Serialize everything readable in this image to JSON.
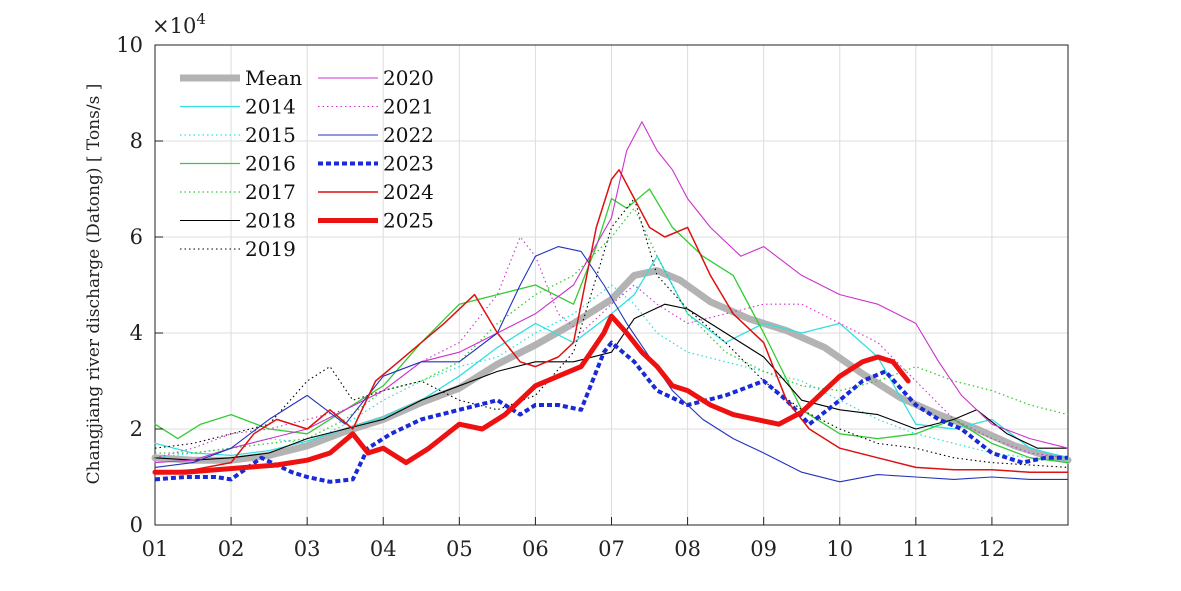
{
  "chart_data": {
    "type": "line",
    "ylabel": "Changjiang river discharge (Datong) [ Tons/s ]",
    "y_multiplier": "×10",
    "y_multiplier_exp": "4",
    "ylim": [
      0,
      100000
    ],
    "yticks": [
      0,
      20000,
      40000,
      60000,
      80000,
      100000
    ],
    "ytick_labels": [
      "0",
      "2",
      "4",
      "6",
      "8",
      "10"
    ],
    "xlim": [
      1,
      13
    ],
    "xticks": [
      1,
      2,
      3,
      4,
      5,
      6,
      7,
      8,
      9,
      10,
      11,
      12
    ],
    "xtick_labels": [
      "01",
      "02",
      "03",
      "04",
      "05",
      "06",
      "07",
      "08",
      "09",
      "10",
      "11",
      "12"
    ],
    "grid": true,
    "legend_position": "top-left",
    "series": [
      {
        "name": "Mean",
        "color": "#b3b3b3",
        "style": "solid",
        "width": 7,
        "x": [
          1,
          1.5,
          2,
          2.5,
          3,
          3.5,
          4,
          4.5,
          5,
          5.5,
          6,
          6.5,
          7,
          7.3,
          7.6,
          7.9,
          8.3,
          8.8,
          9.3,
          9.8,
          10.3,
          10.8,
          11.3,
          11.8,
          12.3,
          12.7,
          13
        ],
        "y": [
          14000,
          13500,
          13500,
          14500,
          16500,
          19500,
          22000,
          25500,
          28500,
          33500,
          37500,
          42000,
          47000,
          52000,
          53000,
          51000,
          46500,
          43000,
          40500,
          37000,
          31500,
          26500,
          23000,
          20000,
          16500,
          14500,
          13500
        ]
      },
      {
        "name": "2014",
        "color": "#33e0e0",
        "style": "solid",
        "width": 1.3,
        "x": [
          1,
          1.5,
          2,
          2.5,
          3,
          3.5,
          4,
          4.5,
          5,
          5.5,
          6,
          6.5,
          7,
          7.3,
          7.6,
          8,
          8.5,
          9,
          9.5,
          10,
          10.5,
          11,
          11.5,
          12,
          12.5,
          13
        ],
        "y": [
          17000,
          15000,
          14500,
          15500,
          17500,
          20000,
          22500,
          26000,
          31000,
          37000,
          42000,
          38000,
          44000,
          48000,
          56000,
          44000,
          38000,
          42000,
          40000,
          42000,
          35000,
          21000,
          20000,
          22000,
          16000,
          14000
        ]
      },
      {
        "name": "2015",
        "color": "#33e0e0",
        "style": "dotted",
        "width": 1.3,
        "x": [
          1,
          1.5,
          2,
          2.5,
          3,
          3.5,
          4,
          4.5,
          5,
          5.5,
          6,
          6.5,
          7,
          7.3,
          7.6,
          8,
          8.5,
          9,
          9.5,
          10,
          10.5,
          11,
          11.5,
          12,
          12.5,
          13
        ],
        "y": [
          14000,
          15000,
          16000,
          18000,
          17000,
          21000,
          26000,
          30000,
          33000,
          35000,
          40000,
          44000,
          50000,
          46000,
          40000,
          36000,
          34000,
          32000,
          30000,
          26000,
          22000,
          19000,
          17000,
          15000,
          14000,
          13500
        ]
      },
      {
        "name": "2016",
        "color": "#33cc33",
        "style": "solid",
        "width": 1.3,
        "x": [
          1,
          1.3,
          1.6,
          2,
          2.5,
          3,
          3.5,
          4,
          4.5,
          5,
          5.5,
          6,
          6.5,
          6.8,
          7,
          7.2,
          7.5,
          7.8,
          8.2,
          8.6,
          9,
          9.5,
          10,
          10.5,
          11,
          11.5,
          12,
          12.5,
          13
        ],
        "y": [
          21000,
          18000,
          21000,
          23000,
          20000,
          19000,
          24000,
          29000,
          38000,
          46000,
          48000,
          50000,
          46000,
          58000,
          68000,
          66000,
          70000,
          62000,
          56000,
          52000,
          40000,
          24000,
          19000,
          18000,
          19000,
          22000,
          17000,
          14000,
          13000
        ]
      },
      {
        "name": "2017",
        "color": "#33cc33",
        "style": "dotted",
        "width": 1.3,
        "x": [
          1,
          1.5,
          2,
          2.5,
          3,
          3.5,
          4,
          4.5,
          5,
          5.5,
          6,
          6.5,
          7,
          7.3,
          7.6,
          8,
          8.5,
          9,
          9.5,
          10,
          10.5,
          11,
          11.5,
          12,
          12.5,
          13
        ],
        "y": [
          15000,
          15000,
          16000,
          17000,
          18000,
          22000,
          28000,
          30000,
          34000,
          42000,
          48000,
          52000,
          60000,
          66000,
          56000,
          44000,
          36000,
          32000,
          29000,
          28000,
          30000,
          33000,
          30000,
          28000,
          25000,
          23000
        ]
      },
      {
        "name": "2018",
        "color": "#000000",
        "style": "solid",
        "width": 1.1,
        "x": [
          1,
          1.5,
          2,
          2.5,
          3,
          3.5,
          4,
          4.5,
          5,
          5.5,
          6,
          6.5,
          7,
          7.3,
          7.7,
          8,
          8.5,
          9,
          9.5,
          10,
          10.5,
          11,
          11.5,
          11.8,
          12.2,
          12.6,
          13
        ],
        "y": [
          14000,
          13500,
          14000,
          15000,
          18000,
          20000,
          22000,
          26000,
          29000,
          32000,
          34000,
          34000,
          36000,
          43000,
          46000,
          45000,
          40000,
          35000,
          26000,
          24000,
          23000,
          20000,
          22000,
          24000,
          19000,
          16000,
          16000
        ]
      },
      {
        "name": "2019",
        "color": "#000000",
        "style": "dotted",
        "width": 1.1,
        "x": [
          1,
          1.5,
          2,
          2.5,
          3,
          3.3,
          3.6,
          4,
          4.5,
          5,
          5.5,
          6,
          6.5,
          7,
          7.3,
          7.6,
          8,
          8.5,
          9,
          9.5,
          10,
          10.5,
          11,
          11.5,
          12,
          12.5,
          13
        ],
        "y": [
          16000,
          17000,
          19000,
          21000,
          30000,
          33000,
          26000,
          28000,
          30000,
          26000,
          24000,
          27000,
          36000,
          62000,
          68000,
          52000,
          45000,
          38000,
          30000,
          24000,
          20000,
          17000,
          16000,
          14000,
          13000,
          12500,
          12000
        ]
      },
      {
        "name": "2020",
        "color": "#cc33cc",
        "style": "solid",
        "width": 1.1,
        "x": [
          1,
          1.5,
          2,
          2.5,
          3,
          3.5,
          4,
          4.5,
          5,
          5.5,
          6,
          6.5,
          7,
          7.2,
          7.4,
          7.6,
          7.8,
          8,
          8.3,
          8.7,
          9,
          9.5,
          10,
          10.5,
          11,
          11.3,
          11.6,
          12,
          12.5,
          13
        ],
        "y": [
          13000,
          13500,
          16000,
          18000,
          20000,
          24000,
          28000,
          34000,
          36000,
          40000,
          44000,
          50000,
          64000,
          78000,
          84000,
          78000,
          74000,
          68000,
          62000,
          56000,
          58000,
          52000,
          48000,
          46000,
          42000,
          34000,
          27000,
          21000,
          18000,
          16000
        ]
      },
      {
        "name": "2021",
        "color": "#cc33cc",
        "style": "dotted",
        "width": 1.1,
        "x": [
          1,
          1.5,
          2,
          2.5,
          3,
          3.5,
          4,
          4.5,
          5,
          5.5,
          5.8,
          6,
          6.3,
          6.6,
          7,
          7.3,
          7.6,
          8,
          8.5,
          9,
          9.5,
          10,
          10.5,
          11,
          11.5,
          12,
          12.5,
          13
        ],
        "y": [
          14000,
          16000,
          19000,
          20000,
          22000,
          24000,
          28000,
          34000,
          38000,
          48000,
          60000,
          56000,
          44000,
          40000,
          46000,
          50000,
          46000,
          42000,
          44000,
          46000,
          46000,
          42000,
          38000,
          30000,
          22000,
          18000,
          15000,
          14000
        ]
      },
      {
        "name": "2022",
        "color": "#2233bb",
        "style": "solid",
        "width": 1.1,
        "x": [
          1,
          1.5,
          2,
          2.5,
          3,
          3.5,
          4,
          4.5,
          5,
          5.5,
          5.8,
          6,
          6.3,
          6.6,
          6.9,
          7.2,
          7.5,
          7.8,
          8.2,
          8.6,
          9,
          9.5,
          10,
          10.5,
          11,
          11.5,
          12,
          12.5,
          13
        ],
        "y": [
          12000,
          13000,
          16000,
          22000,
          27000,
          21000,
          31000,
          34000,
          34000,
          40000,
          50000,
          56000,
          58000,
          57000,
          50000,
          42000,
          35000,
          28000,
          22000,
          18000,
          15000,
          11000,
          9000,
          10500,
          10000,
          9500,
          10000,
          9500,
          9500
        ]
      },
      {
        "name": "2023",
        "color": "#1a2ad6",
        "style": "dotted",
        "width": 4,
        "x": [
          1,
          1.4,
          1.8,
          2,
          2.4,
          2.8,
          3,
          3.3,
          3.6,
          3.8,
          4.1,
          4.5,
          5,
          5.5,
          5.8,
          6,
          6.3,
          6.6,
          6.9,
          7,
          7.3,
          7.6,
          8,
          8.5,
          9,
          9.3,
          9.6,
          10,
          10.3,
          10.6,
          11,
          11.3,
          11.6,
          12,
          12.4,
          12.7,
          13
        ],
        "y": [
          9500,
          10000,
          10000,
          9500,
          14000,
          11000,
          10000,
          9000,
          9500,
          16000,
          19000,
          22000,
          24000,
          26000,
          23000,
          25000,
          25000,
          24000,
          36000,
          38000,
          34000,
          28000,
          25000,
          27000,
          30000,
          26000,
          21000,
          26000,
          30000,
          32000,
          25000,
          22000,
          20000,
          15000,
          13000,
          14000,
          14000
        ]
      },
      {
        "name": "2024",
        "color": "#dd1111",
        "style": "solid",
        "width": 1.5,
        "x": [
          1,
          1.5,
          2,
          2.3,
          2.6,
          3,
          3.3,
          3.6,
          3.9,
          4.2,
          4.5,
          4.8,
          5.2,
          5.5,
          5.8,
          6,
          6.3,
          6.5,
          6.8,
          7,
          7.1,
          7.3,
          7.5,
          7.7,
          8,
          8.3,
          8.6,
          9,
          9.3,
          9.6,
          10,
          10.5,
          11,
          11.5,
          12,
          12.5,
          13
        ],
        "y": [
          11000,
          11500,
          13000,
          19000,
          22000,
          20000,
          24000,
          20000,
          30000,
          34000,
          38000,
          42000,
          48000,
          40000,
          34000,
          33000,
          35000,
          38000,
          62000,
          72000,
          74000,
          68000,
          62000,
          60000,
          62000,
          52000,
          44000,
          38000,
          26000,
          20000,
          16000,
          14000,
          12000,
          11500,
          11500,
          11000,
          11000
        ]
      },
      {
        "name": "2025",
        "color": "#ee1111",
        "style": "solid",
        "width": 5,
        "x": [
          1,
          1.4,
          1.8,
          2.2,
          2.6,
          3,
          3.3,
          3.6,
          3.8,
          4,
          4.3,
          4.6,
          5,
          5.3,
          5.6,
          6,
          6.3,
          6.6,
          6.9,
          7,
          7.2,
          7.4,
          7.6,
          7.8,
          8,
          8.3,
          8.6,
          8.9,
          9.2,
          9.5,
          9.8,
          10,
          10.3,
          10.5,
          10.7,
          10.9
        ],
        "y": [
          11000,
          11000,
          11500,
          12000,
          12500,
          13500,
          15000,
          19000,
          15000,
          16000,
          13000,
          16000,
          21000,
          20000,
          23000,
          29000,
          31000,
          33000,
          40000,
          43500,
          40000,
          36000,
          33000,
          29000,
          28000,
          25000,
          23000,
          22000,
          21000,
          23500,
          28000,
          31000,
          34000,
          35000,
          34000,
          30000
        ]
      }
    ]
  }
}
